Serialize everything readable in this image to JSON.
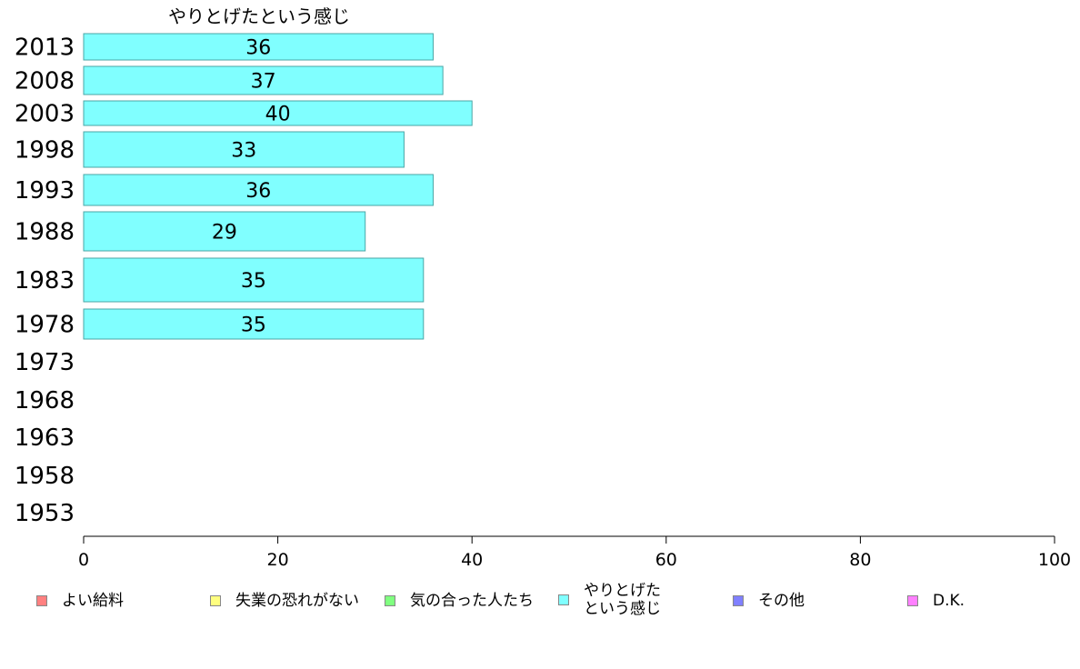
{
  "chart_data": {
    "type": "bar",
    "orientation": "horizontal",
    "title": "やりとげたという感じ",
    "categories": [
      "2013",
      "2008",
      "2003",
      "1998",
      "1993",
      "1988",
      "1983",
      "1978",
      "1973",
      "1968",
      "1963",
      "1958",
      "1953"
    ],
    "series": [
      {
        "name": "やりとげたという感じ",
        "values": [
          36,
          37,
          40,
          33,
          36,
          29,
          35,
          35,
          null,
          null,
          null,
          null,
          null
        ]
      }
    ],
    "xlim": [
      0,
      100
    ],
    "xticks": [
      0,
      20,
      40,
      60,
      80,
      100
    ],
    "bar_color": "#80ffff",
    "bar_border_color": "#4aa6a6",
    "legend_position": "bottom",
    "legend": [
      {
        "label": "よい給料",
        "color": "#ff8080"
      },
      {
        "label": "失業の恐れがない",
        "color": "#ffff80"
      },
      {
        "label": "気の合った人たち",
        "color": "#80ff80"
      },
      {
        "label": "やりとげた\nという感じ",
        "color": "#80ffff"
      },
      {
        "label": "その他",
        "color": "#8080ff"
      },
      {
        "label": "D.K.",
        "color": "#ff80ff"
      }
    ]
  }
}
